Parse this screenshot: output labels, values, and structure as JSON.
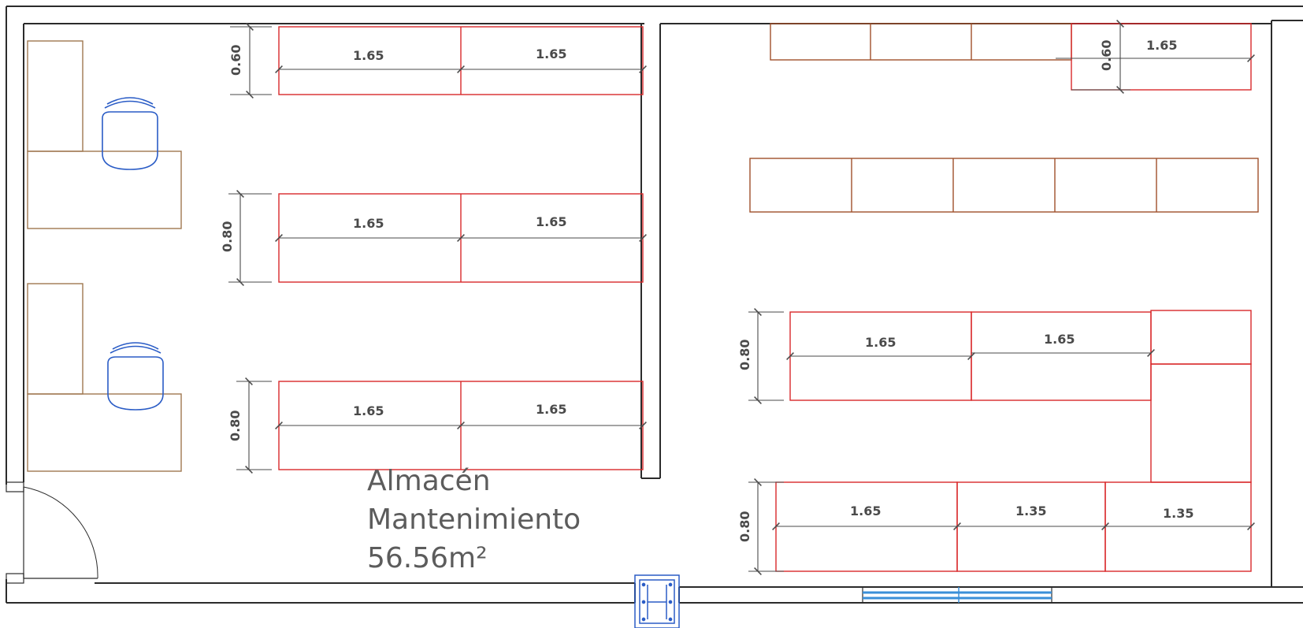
{
  "room": {
    "name_line1": "Almacén",
    "name_line2": "Mantenimiento",
    "area": "56.56m²"
  },
  "dimensions": {
    "shelf_length_a": "1.65",
    "shelf_length_b": "1.35",
    "depth_060": "0.60",
    "depth_080": "0.80"
  },
  "colors": {
    "wall": "#2b2b2b",
    "shelf": "#d9292b",
    "desk": "#a07850",
    "chair": "#2a5cc6",
    "dimension": "#4a4a4a",
    "window": "#3a8fd8"
  }
}
